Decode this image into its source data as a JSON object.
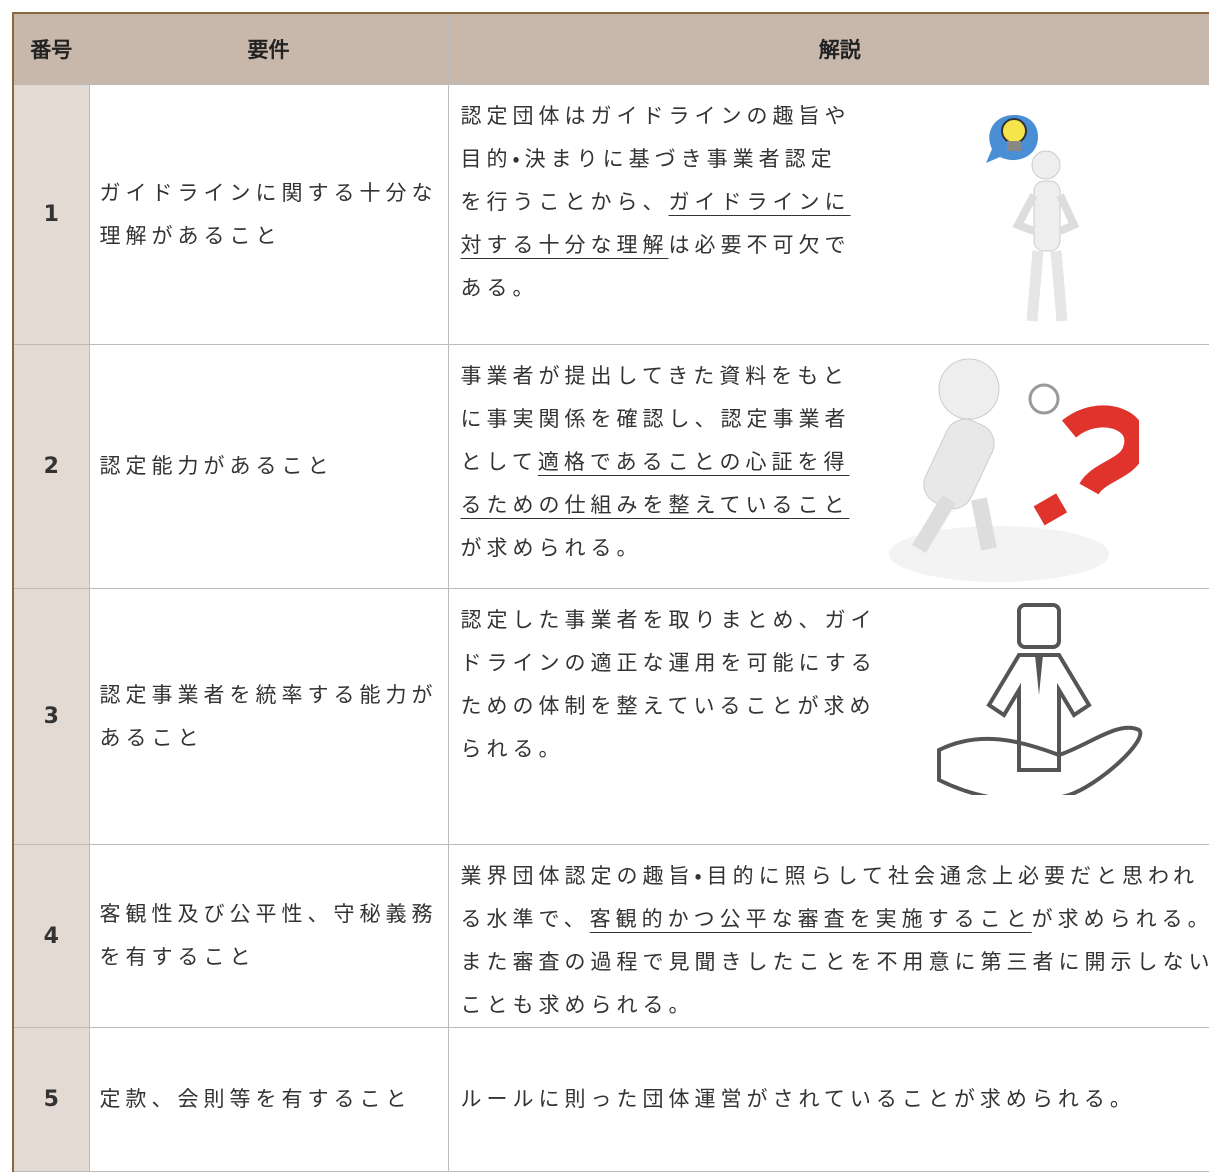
{
  "table": {
    "headers": [
      "番号",
      "要件",
      "解説"
    ],
    "rows": [
      {
        "number": "1",
        "requirement": "ガイドラインに関する十分な理解があること",
        "explanation": {
          "pre": "認定団体はガイドラインの趣旨や目的・決まりに基づき事業者認定を行うことから、",
          "em": "ガイドラインに対する十分な理解",
          "post": "は必要不可欠である。"
        }
      },
      {
        "number": "2",
        "requirement": "認定能力があること",
        "explanation": {
          "pre": "事業者が提出してきた資料をもとに事実関係を確認し、認定事業者として",
          "em": "適格であることの心証を得るための仕組みを整えていること",
          "post": "が求められる。"
        }
      },
      {
        "number": "3",
        "requirement": "認定事業者を統率する能力があること",
        "explanation": {
          "pre": "認定した事業者を取りまとめ、ガイドラインの適正な運用を可能にするための体制を整えていることが求められる。"
        }
      },
      {
        "number": "4",
        "requirement": "客観性及び公平性、守秘義務を有すること",
        "explanation": {
          "pre": "業界団体認定の趣旨・目的に照らして社会通念上必要だと思われる水準で、",
          "em": "客観的かつ公平な審査を実施すること",
          "post": "が求められる。また審査の過程で見聞きしたことを不用意に第三者に開示しないことも求められる。"
        }
      },
      {
        "number": "5",
        "requirement": "定款、会則等を有すること",
        "explanation": {
          "pre": "ルールに則った団体運営がされていることが求められる。"
        }
      }
    ]
  }
}
